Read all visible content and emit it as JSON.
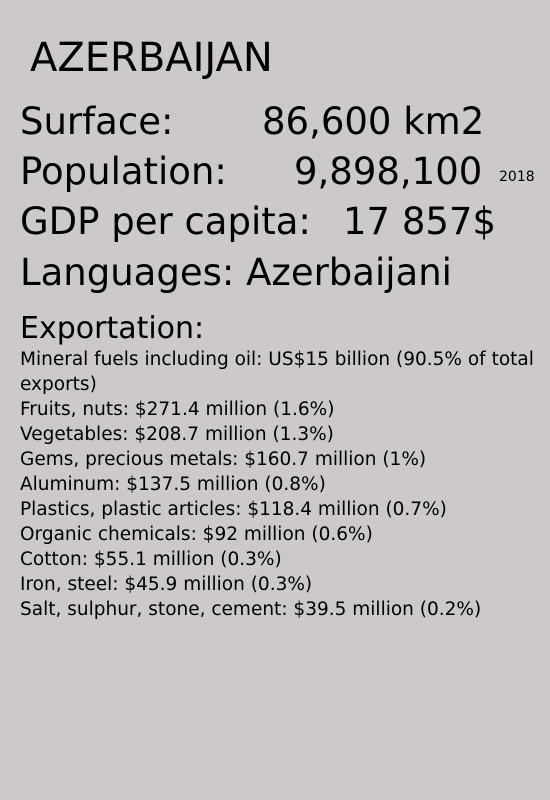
{
  "title": "AZERBAIJAN",
  "surface": {
    "label": "Surface:",
    "value": "86,600 km2"
  },
  "population": {
    "label": "Population:",
    "value": "9,898,100",
    "year": "2018"
  },
  "gdp": {
    "label": "GDP per capita:",
    "value": "17 857$"
  },
  "languages": {
    "text": "Languages: Azerbaijani"
  },
  "exportation": {
    "heading": "Exportation:",
    "items": [
      "Mineral fuels including oil: US$15 billion (90.5% of total exports)",
      "Fruits, nuts: $271.4 million (1.6%)",
      "Vegetables: $208.7 million (1.3%)",
      "Gems, precious metals: $160.7 million (1%)",
      "Aluminum: $137.5 million (0.8%)",
      "Plastics, plastic articles: $118.4 million (0.7%)",
      "Organic chemicals: $92 million (0.6%)",
      "Cotton: $55.1 million (0.3%)",
      "Iron, steel: $45.9 million (0.3%)",
      "Salt, sulphur, stone, cement: $39.5 million (0.2%)"
    ]
  }
}
